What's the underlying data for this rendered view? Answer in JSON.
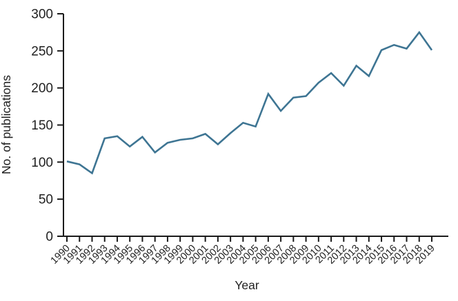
{
  "chart_data": {
    "type": "line",
    "title": "",
    "xlabel": "Year",
    "ylabel": "No. of publications",
    "x": [
      1990,
      1991,
      1992,
      1993,
      1994,
      1995,
      1996,
      1997,
      1998,
      1999,
      2000,
      2001,
      2002,
      2003,
      2004,
      2005,
      2006,
      2007,
      2008,
      2009,
      2010,
      2011,
      2012,
      2013,
      2014,
      2015,
      2016,
      2017,
      2018,
      2019
    ],
    "values": [
      101,
      97,
      85,
      132,
      135,
      121,
      134,
      113,
      126,
      130,
      132,
      138,
      124,
      139,
      153,
      148,
      192,
      169,
      187,
      189,
      207,
      220,
      203,
      230,
      216,
      251,
      258,
      253,
      275,
      251
    ],
    "ylim": [
      0,
      300
    ],
    "yticks": [
      0,
      50,
      100,
      150,
      200,
      250,
      300
    ],
    "grid": false,
    "legend": "none",
    "line_color": "#3e7593",
    "axis_color": "#1a1a1a",
    "tick_label_color": "#1f1f1f"
  }
}
